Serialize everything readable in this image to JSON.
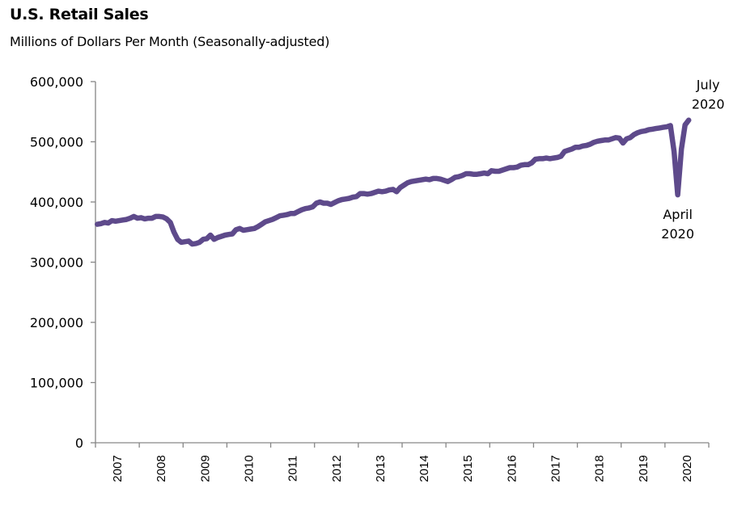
{
  "chart_data": {
    "type": "line",
    "title": "U.S. Retail Sales",
    "subtitle": "Millions of Dollars Per Month (Seasonally-adjusted)",
    "xlabel": "",
    "ylabel": "",
    "ylim": [
      0,
      600000
    ],
    "y_ticks": [
      0,
      100000,
      200000,
      300000,
      400000,
      500000,
      600000
    ],
    "y_tick_labels": [
      "0",
      "100,000",
      "200,000",
      "300,000",
      "400,000",
      "500,000",
      "600,000"
    ],
    "x_tick_labels": [
      "2007",
      "2008",
      "2009",
      "2010",
      "2011",
      "2012",
      "2013",
      "2014",
      "2015",
      "2016",
      "2017",
      "2018",
      "2019",
      "2020"
    ],
    "x_start": "2007-01",
    "x_end": "2020-07",
    "grid": false,
    "legend": "none",
    "line_color": "#5e4a8b",
    "series": [
      {
        "name": "U.S. Retail Sales",
        "frequency": "monthly",
        "start": "2007-01",
        "values": [
          363000,
          364000,
          366000,
          365000,
          369000,
          368000,
          369000,
          370000,
          371000,
          373000,
          376000,
          373000,
          374000,
          372000,
          373000,
          373000,
          376000,
          376000,
          375000,
          372000,
          366000,
          350000,
          338000,
          333000,
          334000,
          335000,
          330000,
          331000,
          333000,
          338000,
          339000,
          345000,
          338000,
          341000,
          343000,
          345000,
          346000,
          347000,
          354000,
          356000,
          353000,
          354000,
          355000,
          356000,
          359000,
          363000,
          367000,
          369000,
          371000,
          374000,
          377000,
          378000,
          379000,
          381000,
          381000,
          384000,
          387000,
          389000,
          390000,
          392000,
          398000,
          400000,
          398000,
          398000,
          396000,
          399000,
          402000,
          404000,
          405000,
          406000,
          408000,
          409000,
          414000,
          414000,
          413000,
          414000,
          416000,
          418000,
          417000,
          418000,
          420000,
          421000,
          417000,
          424000,
          428000,
          432000,
          434000,
          435000,
          436000,
          437000,
          438000,
          437000,
          439000,
          439000,
          438000,
          436000,
          434000,
          437000,
          441000,
          442000,
          444000,
          447000,
          447000,
          446000,
          446000,
          447000,
          448000,
          447000,
          452000,
          451000,
          451000,
          453000,
          455000,
          457000,
          457000,
          458000,
          461000,
          462000,
          462000,
          465000,
          471000,
          472000,
          472000,
          473000,
          472000,
          473000,
          474000,
          476000,
          484000,
          486000,
          488000,
          491000,
          491000,
          493000,
          494000,
          496000,
          499000,
          501000,
          502000,
          503000,
          503000,
          505000,
          507000,
          506000,
          498000,
          505000,
          507000,
          512000,
          515000,
          517000,
          518000,
          520000,
          521000,
          522000,
          523000,
          524000,
          525000,
          527000,
          484000,
          412000,
          488000,
          528000,
          536000
        ]
      }
    ],
    "annotations": [
      {
        "label_line1": "July",
        "label_line2": "2020",
        "x": "2020-07",
        "y": 536000,
        "position": "above"
      },
      {
        "label_line1": "April",
        "label_line2": "2020",
        "x": "2020-04",
        "y": 412000,
        "position": "below"
      }
    ]
  }
}
